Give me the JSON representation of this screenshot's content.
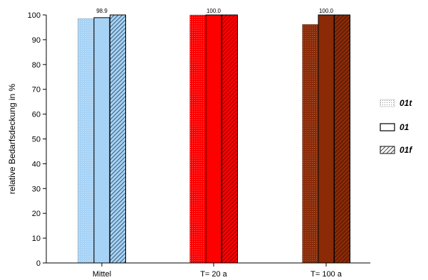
{
  "chart_data": {
    "type": "bar",
    "categories": [
      "Mittel",
      "T= 20 a",
      "T= 100 a"
    ],
    "series": [
      {
        "name": "01t",
        "values": [
          98.5,
          100.0,
          96.2
        ],
        "pattern": "dotted"
      },
      {
        "name": "01",
        "values": [
          98.9,
          100.0,
          100.0
        ],
        "pattern": "solid"
      },
      {
        "name": "01f",
        "values": [
          100.0,
          100.0,
          100.0
        ],
        "pattern": "hatched"
      }
    ],
    "category_colors": [
      "#a6d2f5",
      "#ff0000",
      "#8b2a06"
    ],
    "data_labels": [
      "98.9",
      "100.0",
      "100.0"
    ],
    "ylabel": "relative Bedarfsdeckung in %",
    "ylim": [
      0,
      100
    ],
    "yticks": [
      0,
      10,
      20,
      30,
      40,
      50,
      60,
      70,
      80,
      90,
      100
    ],
    "grid": false,
    "legend_position": "right"
  }
}
